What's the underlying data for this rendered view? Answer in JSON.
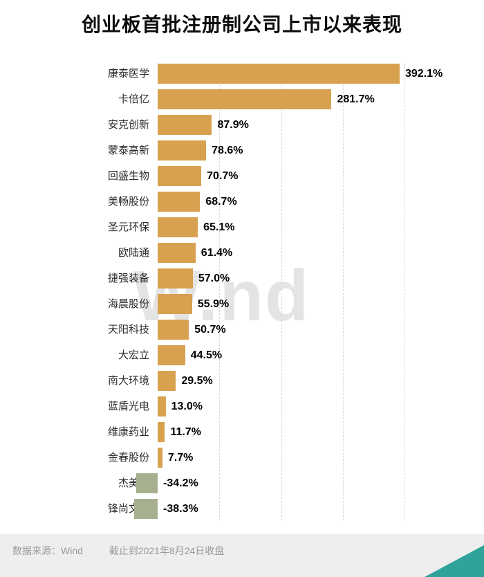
{
  "title": "创业板首批注册制公司上市以来表现",
  "watermark": "W.nd",
  "footer": {
    "source": "数据来源：Wind",
    "asof": "截止到2021年8月24日收盘"
  },
  "colors": {
    "positive_bar": "#d7a150",
    "negative_bar": "#a7b08e",
    "gridline": "#d9d9d9",
    "watermark": "#e4e4e4",
    "footer_bg": "#eeeeee",
    "footer_text": "#999999",
    "corner_accent": "#2fa39a",
    "value_text": "#000000",
    "category_text": "#2b2b2b"
  },
  "chart_data": {
    "type": "bar",
    "orientation": "horizontal",
    "title": "创业板首批注册制公司上市以来表现",
    "unit": "%",
    "categories": [
      "康泰医学",
      "卡倍亿",
      "安克创新",
      "蒙泰高新",
      "回盛生物",
      "美畅股份",
      "圣元环保",
      "欧陆通",
      "捷强装备",
      "海晨股份",
      "天阳科技",
      "大宏立",
      "南大环境",
      "蓝盾光电",
      "维康药业",
      "金春股份",
      "杰美特",
      "锋尚文化"
    ],
    "values": [
      392.1,
      281.7,
      87.9,
      78.6,
      70.7,
      68.7,
      65.1,
      61.4,
      57.0,
      55.9,
      50.7,
      44.5,
      29.5,
      13.0,
      11.7,
      7.7,
      -34.2,
      -38.3
    ],
    "value_labels": [
      "392.1%",
      "281.7%",
      "87.9%",
      "78.6%",
      "70.7%",
      "68.7%",
      "65.1%",
      "61.4%",
      "57.0%",
      "55.9%",
      "50.7%",
      "44.5%",
      "29.5%",
      "13.0%",
      "11.7%",
      "7.7%",
      "-34.2%",
      "-38.3%"
    ],
    "xlim": [
      -60,
      440
    ],
    "gridlines": [
      100,
      200,
      300,
      400
    ],
    "grid_style": "dashed-vertical",
    "legend": "none",
    "source_note": "数据来源：Wind　截止到2021年8月24日收盘"
  }
}
